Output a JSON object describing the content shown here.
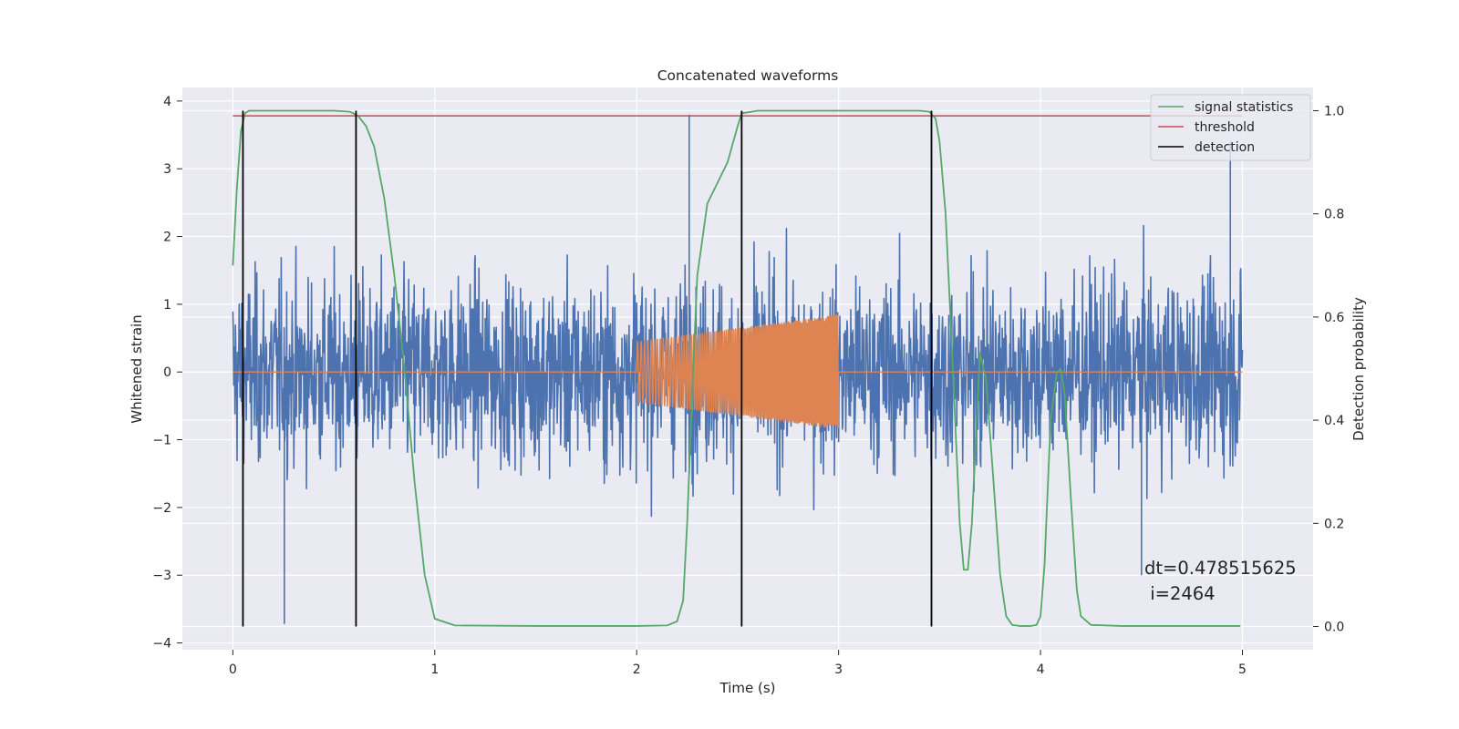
{
  "chart_data": {
    "type": "line",
    "title": "Concatenated waveforms",
    "xlabel": "Time (s)",
    "ylabel": "Whitened strain",
    "ylabel_right": "Detection probability",
    "xlim": [
      -0.25,
      5.35
    ],
    "ylim": [
      -4.1,
      4.2
    ],
    "ylim_right": [
      -0.045,
      1.045
    ],
    "x_ticks": [
      0,
      1,
      2,
      3,
      4,
      5
    ],
    "y_ticks": [
      -4,
      -3,
      -2,
      -1,
      0,
      1,
      2,
      3,
      4
    ],
    "y_ticks_right": [
      0.0,
      0.2,
      0.4,
      0.6,
      0.8,
      1.0
    ],
    "x_tick_labels": [
      "0",
      "1",
      "2",
      "3",
      "4",
      "5"
    ],
    "y_tick_labels": [
      "−4",
      "−3",
      "−2",
      "−1",
      "0",
      "1",
      "2",
      "3",
      "4"
    ],
    "y_tick_labels_right": [
      "0.0",
      "0.2",
      "0.4",
      "0.6",
      "0.8",
      "1.0"
    ],
    "grid": true,
    "legend_placement": "top-right",
    "strain_noise": {
      "x_range": [
        0,
        5
      ],
      "typical_peak": 2.0,
      "max": 3.8,
      "min": -3.72,
      "color": "#4c72b0"
    },
    "injected_signal": {
      "x_range": [
        2.0,
        3.0
      ],
      "amplitude_start": 0.45,
      "amplitude_end": 0.85,
      "color": "#dd8452"
    },
    "series": [
      {
        "name": "signal statistics",
        "axis": "right",
        "color": "#55a868",
        "x": [
          0,
          0.02,
          0.04,
          0.06,
          0.08,
          0.1,
          0.3,
          0.5,
          0.58,
          0.62,
          0.66,
          0.7,
          0.75,
          0.8,
          0.85,
          0.9,
          0.95,
          1.0,
          1.1,
          1.5,
          2.0,
          2.15,
          2.2,
          2.23,
          2.25,
          2.28,
          2.3,
          2.35,
          2.4,
          2.45,
          2.5,
          2.52,
          2.6,
          2.8,
          3.0,
          3.2,
          3.4,
          3.45,
          3.48,
          3.5,
          3.53,
          3.56,
          3.6,
          3.62,
          3.64,
          3.66,
          3.7,
          3.73,
          3.76,
          3.8,
          3.83,
          3.86,
          3.9,
          3.95,
          3.98,
          4.0,
          4.02,
          4.05,
          4.08,
          4.1,
          4.12,
          4.15,
          4.18,
          4.2,
          4.25,
          4.4,
          4.6,
          4.8,
          4.99
        ],
        "values": [
          0.7,
          0.85,
          0.96,
          0.995,
          1.0,
          1.0,
          1.0,
          1.0,
          0.998,
          0.99,
          0.97,
          0.93,
          0.83,
          0.68,
          0.5,
          0.28,
          0.1,
          0.015,
          0.002,
          0.001,
          0.001,
          0.002,
          0.01,
          0.05,
          0.2,
          0.5,
          0.68,
          0.82,
          0.86,
          0.9,
          0.97,
          0.995,
          1.0,
          1.0,
          1.0,
          1.0,
          1.0,
          0.998,
          0.985,
          0.94,
          0.8,
          0.55,
          0.2,
          0.11,
          0.11,
          0.2,
          0.53,
          0.48,
          0.32,
          0.1,
          0.02,
          0.003,
          0.001,
          0.001,
          0.003,
          0.02,
          0.12,
          0.4,
          0.49,
          0.5,
          0.45,
          0.25,
          0.07,
          0.02,
          0.003,
          0.001,
          0.001,
          0.001,
          0.001
        ]
      },
      {
        "name": "threshold",
        "axis": "right",
        "color": "#c44e52",
        "x": [
          0,
          5
        ],
        "values": [
          0.99,
          0.99
        ]
      },
      {
        "name": "detection",
        "axis": "right",
        "color": "#000000",
        "vlines": [
          0.05,
          0.61,
          2.52,
          3.46
        ],
        "ymin": 0.0,
        "ymax": 1.0
      }
    ],
    "annotation": {
      "lines": [
        "dt=0.478515625",
        " i=2464"
      ]
    }
  }
}
